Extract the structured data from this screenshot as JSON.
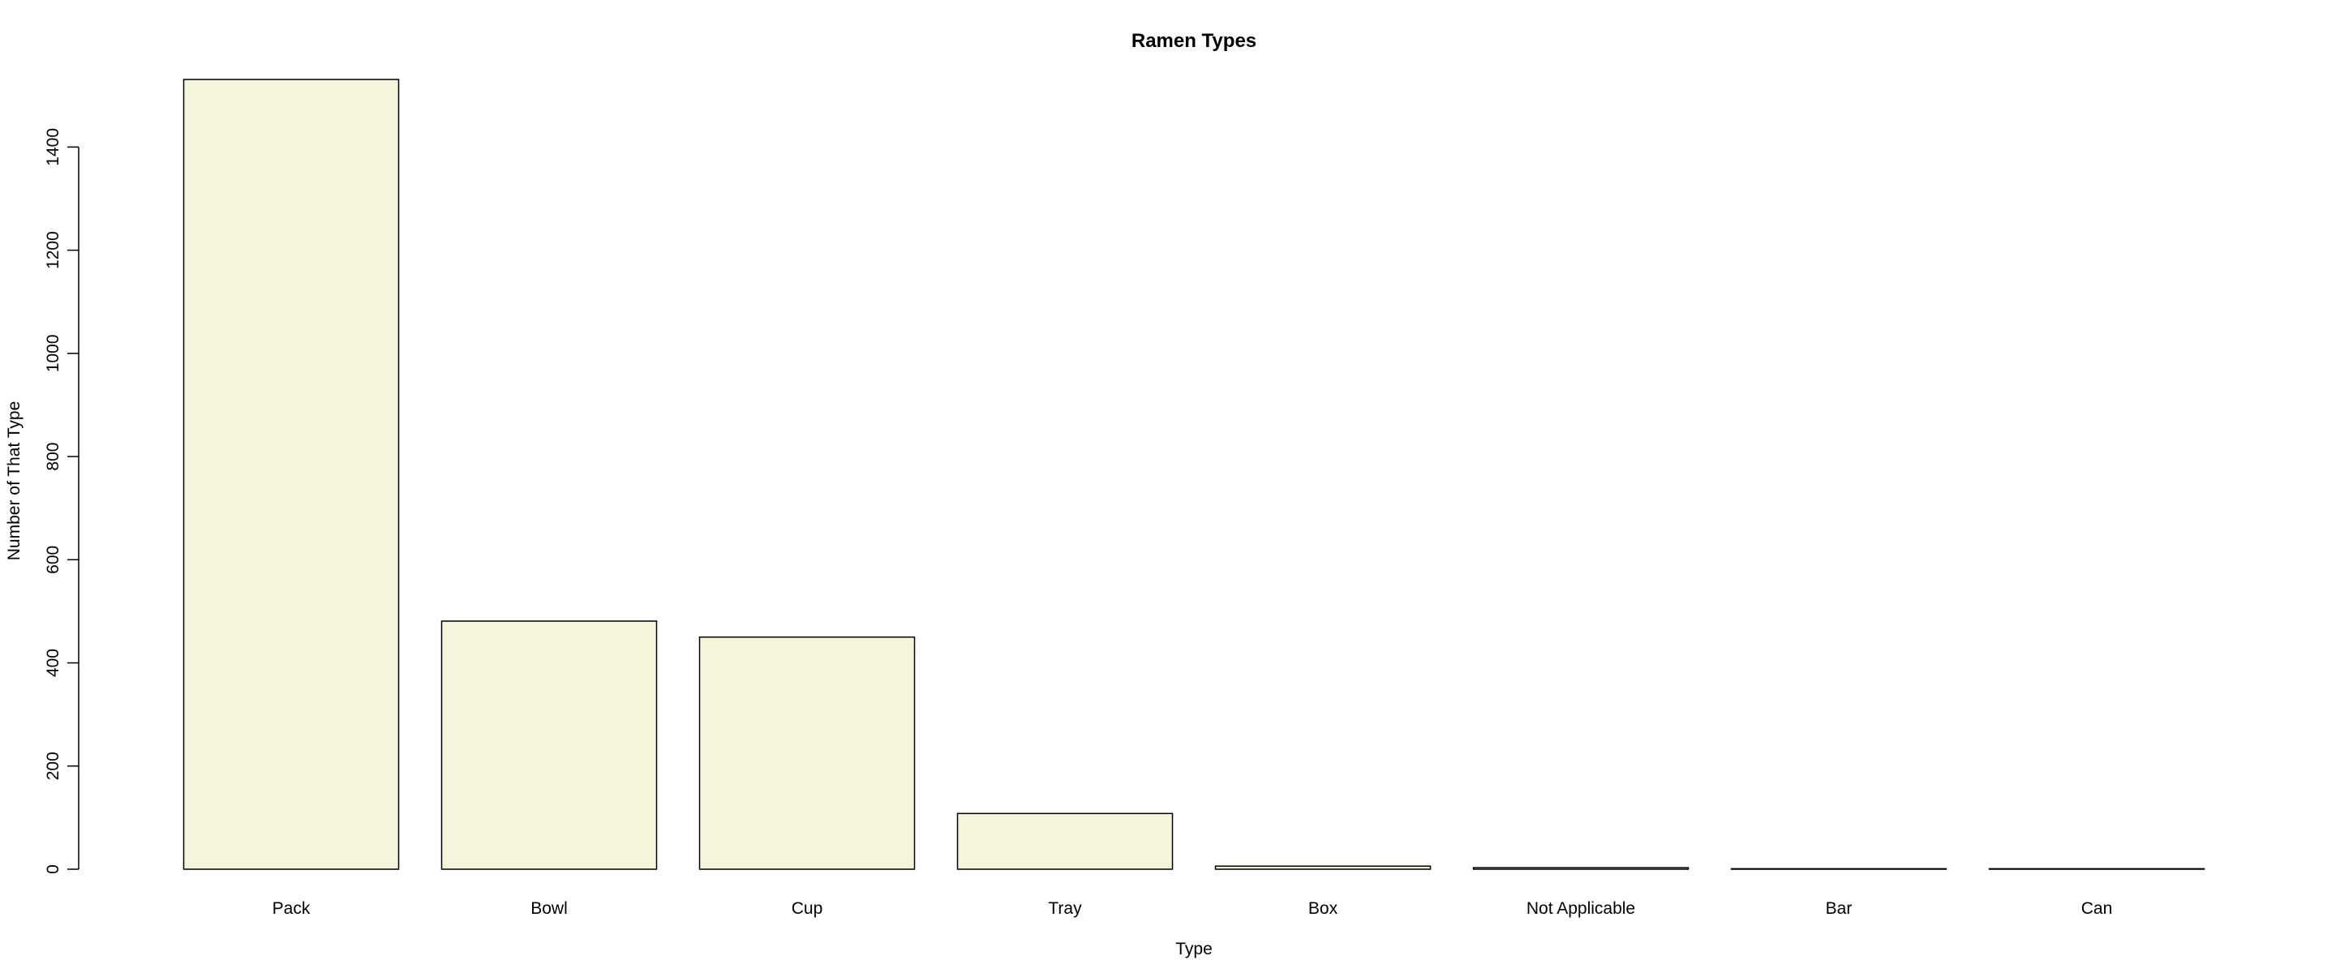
{
  "chart_data": {
    "type": "bar",
    "title": "Ramen Types",
    "xlabel": "Type",
    "ylabel": "Number of That Type",
    "categories": [
      "Pack",
      "Bowl",
      "Cup",
      "Tray",
      "Box",
      "Not Applicable",
      "Bar",
      "Can"
    ],
    "values": [
      1531,
      481,
      450,
      108,
      6,
      3,
      1,
      1
    ],
    "ylim": [
      0,
      1531
    ],
    "yticks": [
      "0",
      "200",
      "400",
      "600",
      "800",
      "1000",
      "1200",
      "1400"
    ],
    "grid": false,
    "legend": "none",
    "colors": {
      "bar_fill": "#f5f5dc",
      "bar_stroke": "#000000",
      "background": "#ffffff"
    }
  }
}
